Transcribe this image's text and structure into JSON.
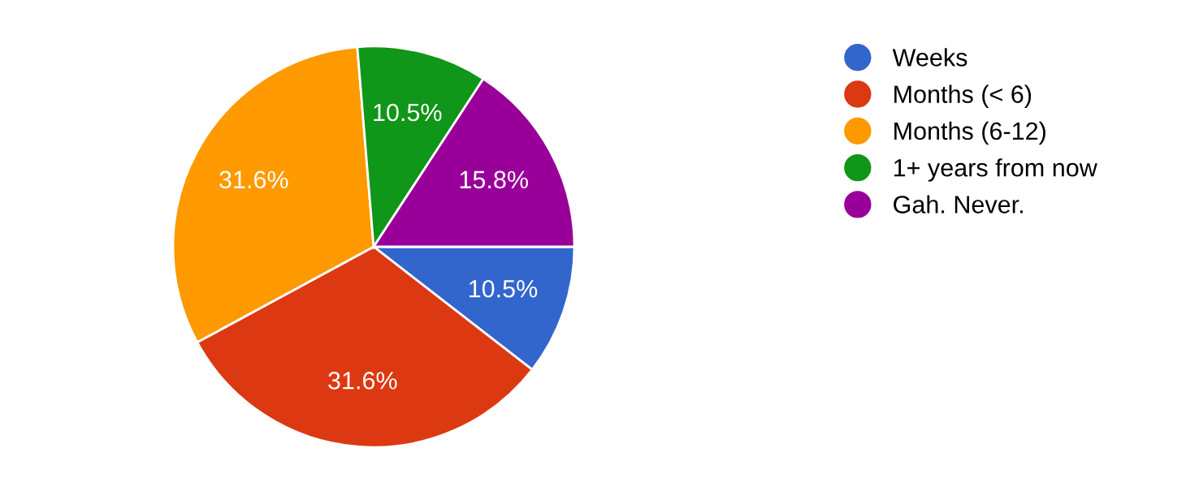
{
  "chart_data": {
    "type": "pie",
    "categories": [
      "Weeks",
      "Months (< 6)",
      "Months (6-12)",
      "1+ years from now",
      "Gah. Never."
    ],
    "values": [
      10.5,
      31.6,
      31.6,
      10.5,
      15.8
    ],
    "colors": [
      "#3366cc",
      "#dc3912",
      "#ff9900",
      "#109618",
      "#990099"
    ],
    "value_labels": [
      "10.5%",
      "31.6%",
      "31.6%",
      "10.5%",
      "15.8%"
    ],
    "legend": "right"
  }
}
